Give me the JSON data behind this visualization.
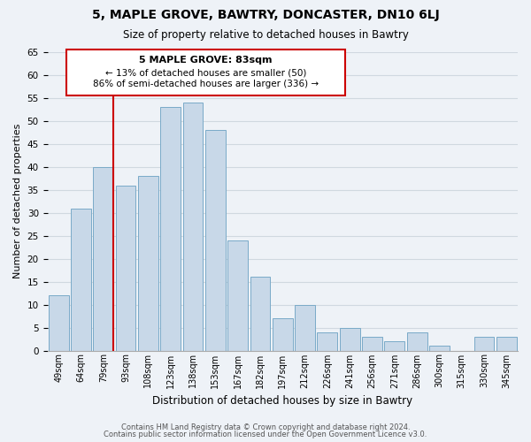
{
  "title": "5, MAPLE GROVE, BAWTRY, DONCASTER, DN10 6LJ",
  "subtitle": "Size of property relative to detached houses in Bawtry",
  "xlabel": "Distribution of detached houses by size in Bawtry",
  "ylabel": "Number of detached properties",
  "bar_labels": [
    "49sqm",
    "64sqm",
    "79sqm",
    "93sqm",
    "108sqm",
    "123sqm",
    "138sqm",
    "153sqm",
    "167sqm",
    "182sqm",
    "197sqm",
    "212sqm",
    "226sqm",
    "241sqm",
    "256sqm",
    "271sqm",
    "286sqm",
    "300sqm",
    "315sqm",
    "330sqm",
    "345sqm"
  ],
  "bar_values": [
    12,
    31,
    40,
    36,
    38,
    53,
    54,
    48,
    24,
    16,
    7,
    10,
    4,
    5,
    3,
    2,
    4,
    1,
    0,
    3,
    3
  ],
  "bar_color": "#c8d8e8",
  "bar_edge_color": "#7aaac8",
  "grid_color": "#d0d8e0",
  "vline_x_idx": 2,
  "vline_color": "#cc0000",
  "annotation_title": "5 MAPLE GROVE: 83sqm",
  "annotation_line1": "← 13% of detached houses are smaller (50)",
  "annotation_line2": "86% of semi-detached houses are larger (336) →",
  "box_color": "#ffffff",
  "box_edge_color": "#cc0000",
  "ylim": [
    0,
    65
  ],
  "yticks": [
    0,
    5,
    10,
    15,
    20,
    25,
    30,
    35,
    40,
    45,
    50,
    55,
    60,
    65
  ],
  "footer1": "Contains HM Land Registry data © Crown copyright and database right 2024.",
  "footer2": "Contains public sector information licensed under the Open Government Licence v3.0.",
  "background_color": "#eef2f7"
}
